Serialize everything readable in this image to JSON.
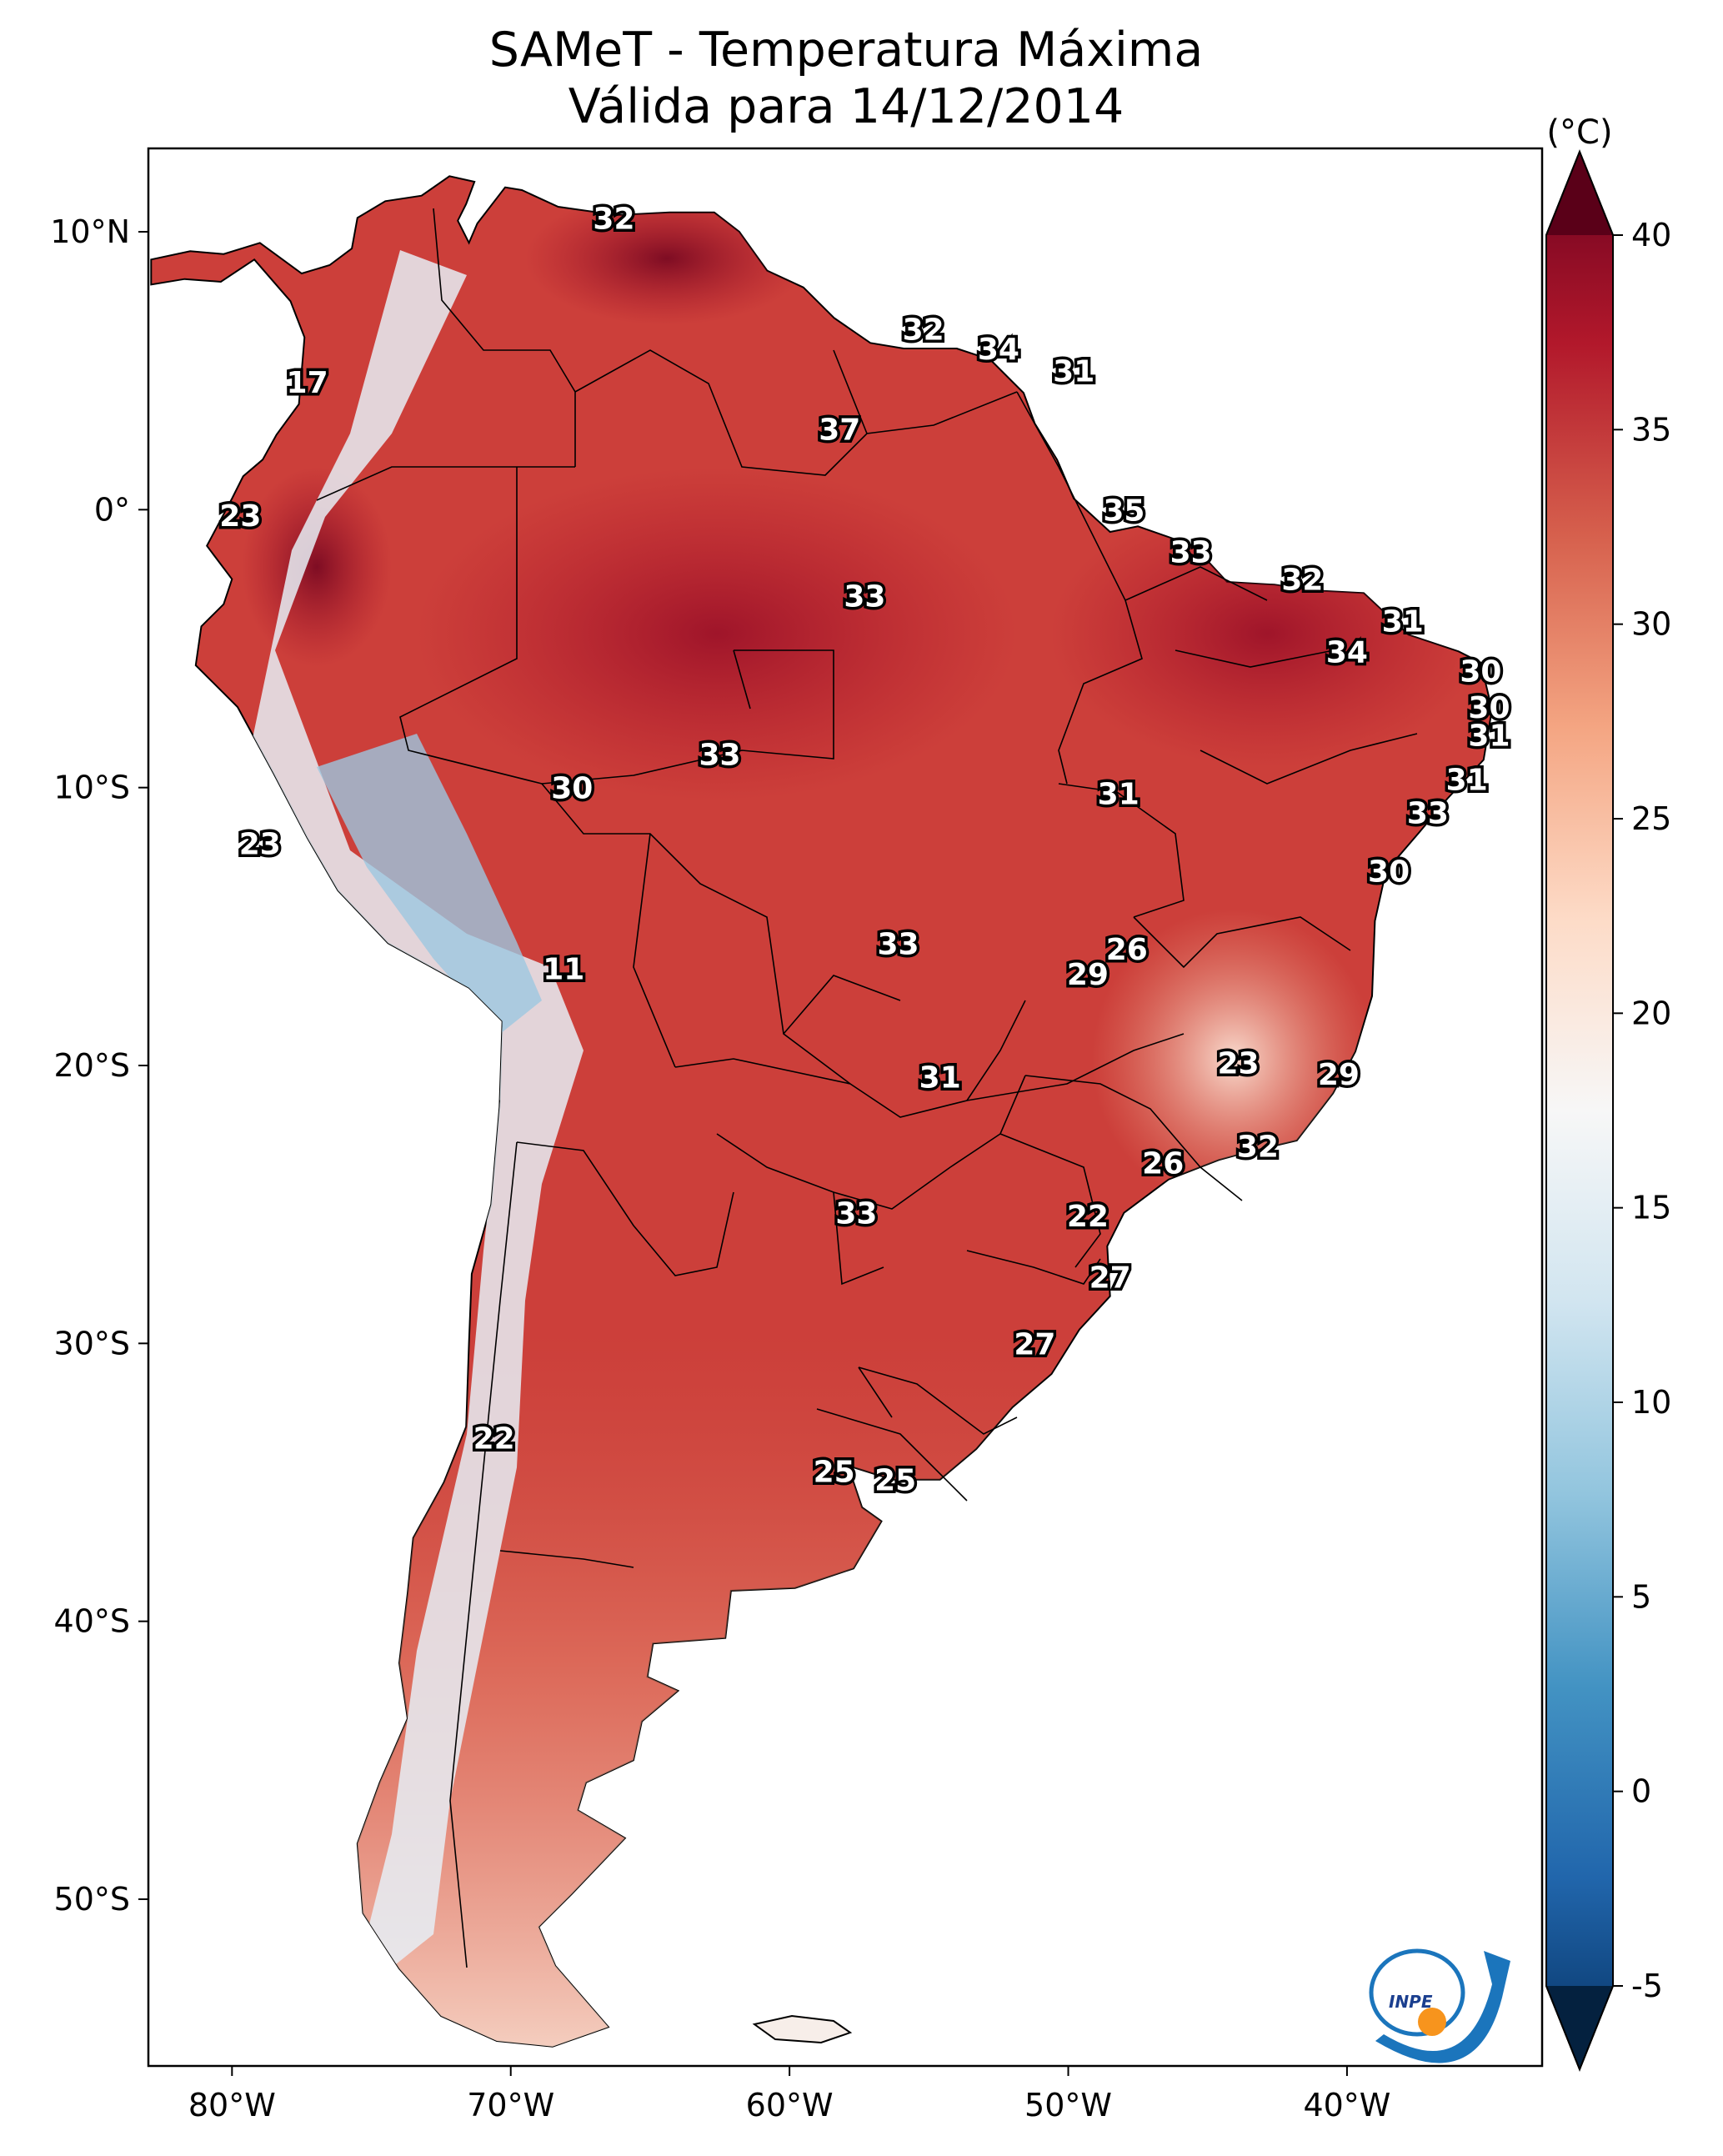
{
  "title": {
    "line1": "SAMeT - Temperatura Máxima",
    "line2": "Válida para 14/12/2014"
  },
  "map": {
    "lon_range": [
      -83,
      -33
    ],
    "lat_range": [
      -56,
      13
    ],
    "lon_ticks": [
      {
        "value": -80,
        "label": "80°W"
      },
      {
        "value": -70,
        "label": "70°W"
      },
      {
        "value": -60,
        "label": "60°W"
      },
      {
        "value": -50,
        "label": "50°W"
      },
      {
        "value": -40,
        "label": "40°W"
      }
    ],
    "lat_ticks": [
      {
        "value": 10,
        "label": "10°N"
      },
      {
        "value": 0,
        "label": "0°"
      },
      {
        "value": -10,
        "label": "10°S"
      },
      {
        "value": -20,
        "label": "20°S"
      },
      {
        "value": -30,
        "label": "30°S"
      },
      {
        "value": -40,
        "label": "40°S"
      },
      {
        "value": -50,
        "label": "50°S"
      }
    ],
    "city_values": [
      {
        "lon": -66.3,
        "lat": 10.5,
        "value": "32"
      },
      {
        "lon": -55.2,
        "lat": 6.5,
        "value": "32"
      },
      {
        "lon": -52.5,
        "lat": 5.8,
        "value": "34"
      },
      {
        "lon": -49.8,
        "lat": 5.0,
        "value": "31"
      },
      {
        "lon": -77.3,
        "lat": 4.6,
        "value": "17"
      },
      {
        "lon": -58.2,
        "lat": 2.9,
        "value": "37"
      },
      {
        "lon": -48.0,
        "lat": 0.0,
        "value": "35"
      },
      {
        "lon": -79.7,
        "lat": -0.2,
        "value": "23"
      },
      {
        "lon": -45.6,
        "lat": -1.5,
        "value": "33"
      },
      {
        "lon": -41.6,
        "lat": -2.5,
        "value": "32"
      },
      {
        "lon": -57.3,
        "lat": -3.1,
        "value": "33"
      },
      {
        "lon": -38.0,
        "lat": -4.0,
        "value": "31"
      },
      {
        "lon": -40.0,
        "lat": -5.1,
        "value": "34"
      },
      {
        "lon": -35.2,
        "lat": -5.8,
        "value": "30"
      },
      {
        "lon": -34.9,
        "lat": -7.1,
        "value": "30"
      },
      {
        "lon": -34.9,
        "lat": -8.1,
        "value": "31"
      },
      {
        "lon": -62.5,
        "lat": -8.8,
        "value": "33"
      },
      {
        "lon": -35.7,
        "lat": -9.7,
        "value": "31"
      },
      {
        "lon": -48.2,
        "lat": -10.2,
        "value": "31"
      },
      {
        "lon": -67.8,
        "lat": -10.0,
        "value": "30"
      },
      {
        "lon": -37.1,
        "lat": -10.9,
        "value": "33"
      },
      {
        "lon": -79.0,
        "lat": -12.0,
        "value": "23"
      },
      {
        "lon": -38.5,
        "lat": -13.0,
        "value": "30"
      },
      {
        "lon": -47.9,
        "lat": -15.8,
        "value": "26"
      },
      {
        "lon": -56.1,
        "lat": -15.6,
        "value": "33"
      },
      {
        "lon": -68.1,
        "lat": -16.5,
        "value": "11"
      },
      {
        "lon": -49.3,
        "lat": -16.7,
        "value": "29"
      },
      {
        "lon": -43.9,
        "lat": -19.9,
        "value": "23"
      },
      {
        "lon": -40.3,
        "lat": -20.3,
        "value": "29"
      },
      {
        "lon": -54.6,
        "lat": -20.4,
        "value": "31"
      },
      {
        "lon": -43.2,
        "lat": -22.9,
        "value": "32"
      },
      {
        "lon": -46.6,
        "lat": -23.5,
        "value": "26"
      },
      {
        "lon": -57.6,
        "lat": -25.3,
        "value": "33"
      },
      {
        "lon": -49.3,
        "lat": -25.4,
        "value": "22"
      },
      {
        "lon": -48.5,
        "lat": -27.6,
        "value": "27"
      },
      {
        "lon": -51.2,
        "lat": -30.0,
        "value": "27"
      },
      {
        "lon": -70.6,
        "lat": -33.4,
        "value": "22"
      },
      {
        "lon": -58.4,
        "lat": -34.6,
        "value": "25"
      },
      {
        "lon": -56.2,
        "lat": -34.9,
        "value": "25"
      }
    ]
  },
  "colorbar": {
    "unit": "(°C)",
    "range": [
      -5,
      40
    ],
    "ticks": [
      "40",
      "35",
      "30",
      "25",
      "20",
      "15",
      "10",
      "5",
      "0",
      "-5"
    ],
    "colors": [
      "#053061",
      "#2166ac",
      "#4393c3",
      "#92c5de",
      "#d1e5f0",
      "#f7f7f7",
      "#fddbc7",
      "#f4a582",
      "#d6604d",
      "#b2182b",
      "#67001f"
    ]
  },
  "logo": {
    "text": "INPE"
  }
}
